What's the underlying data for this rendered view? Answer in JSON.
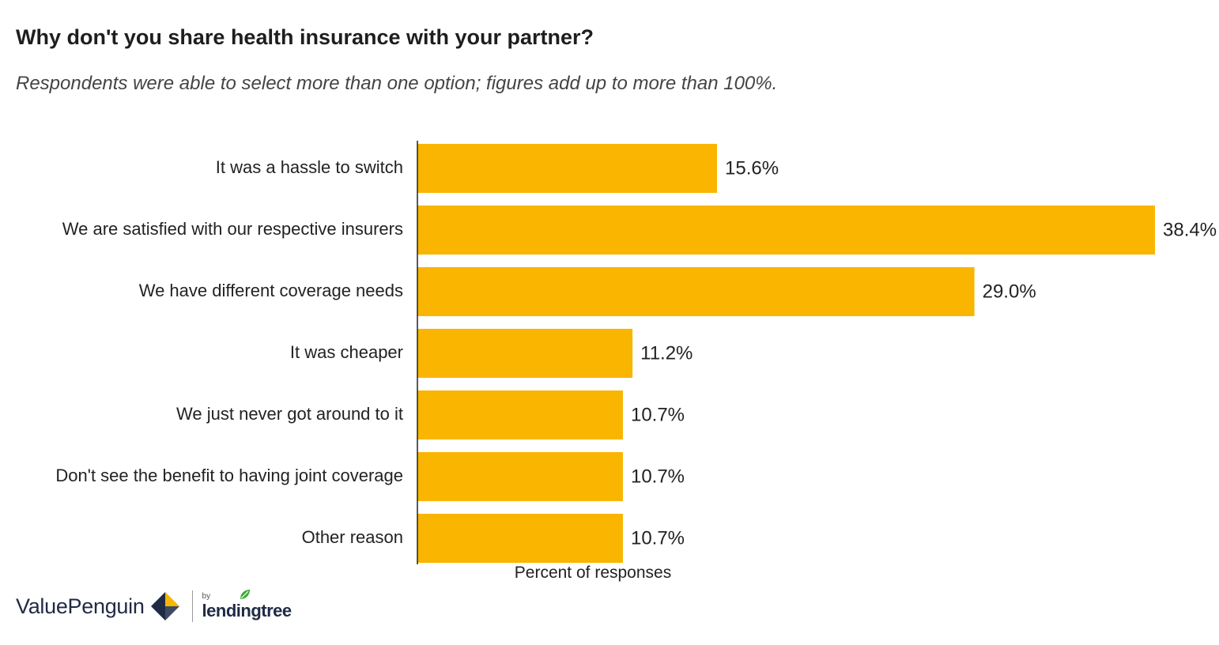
{
  "title": "Why don't you share health insurance with your partner?",
  "subtitle": "Respondents were able to select more than one option; figures add up to more than 100%.",
  "colors": {
    "bar": "#F9B500",
    "axis": "#222222",
    "logo_navy": "#1F2A44",
    "logo_gold": "#F9B500",
    "leaf_green": "#3BAA35"
  },
  "chart_data": {
    "type": "bar",
    "orientation": "horizontal",
    "categories": [
      "It was a hassle to switch",
      "We are satisfied with our respective insurers",
      "We have different coverage needs",
      "It was cheaper",
      "We just never got around to it",
      "Don't see the benefit to having joint coverage",
      "Other reason"
    ],
    "values": [
      15.6,
      38.4,
      29.0,
      11.2,
      10.7,
      10.7,
      10.7
    ],
    "value_labels": [
      "15.6%",
      "38.4%",
      "29.0%",
      "11.2%",
      "10.7%",
      "10.7%",
      "10.7%"
    ],
    "xlabel": "Percent of responses",
    "ylabel": "",
    "xlim": [
      0,
      38.4
    ],
    "grid": false,
    "legend": "none"
  },
  "footer": {
    "brand": "ValuePenguin",
    "by": "by",
    "partner": "lendingtree",
    "logo_icon": "valuepenguin-logo-icon",
    "leaf_icon": "lendingtree-leaf-icon"
  }
}
